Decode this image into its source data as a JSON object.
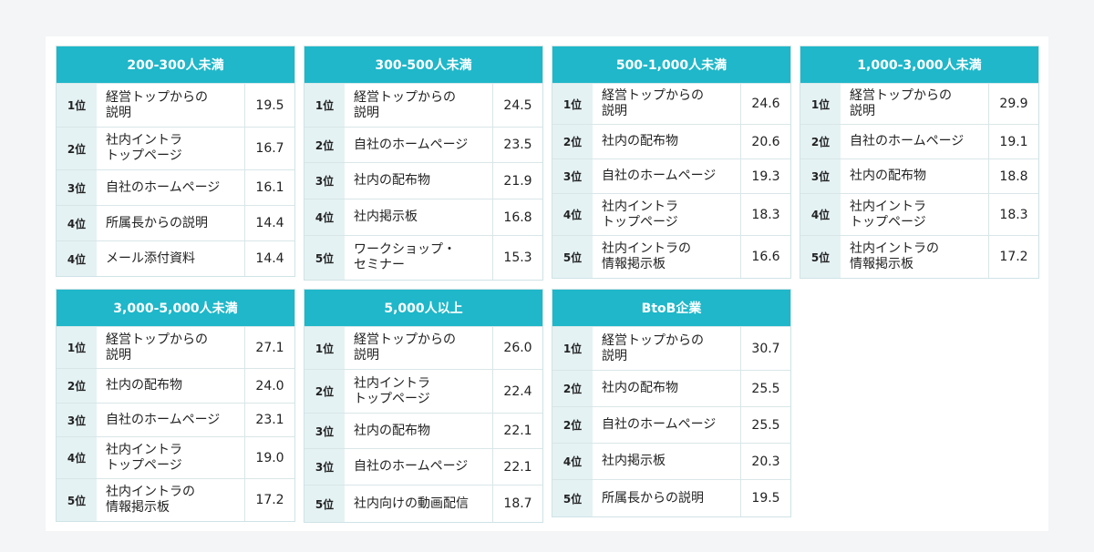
{
  "tables": [
    {
      "title": "200-300人未満",
      "rows": [
        {
          "rank": "1位",
          "label": "経営トップからの\n説明",
          "value": "19.5"
        },
        {
          "rank": "2位",
          "label": "社内イントラ\nトップページ",
          "value": "16.7"
        },
        {
          "rank": "3位",
          "label": "自社のホームページ",
          "value": "16.1"
        },
        {
          "rank": "4位",
          "label": "所属長からの説明",
          "value": "14.4"
        },
        {
          "rank": "4位",
          "label": "メール添付資料",
          "value": "14.4"
        }
      ]
    },
    {
      "title": "300-500人未満",
      "rows": [
        {
          "rank": "1位",
          "label": "経営トップからの\n説明",
          "value": "24.5"
        },
        {
          "rank": "2位",
          "label": "自社のホームページ",
          "value": "23.5"
        },
        {
          "rank": "3位",
          "label": "社内の配布物",
          "value": "21.9"
        },
        {
          "rank": "4位",
          "label": "社内掲示板",
          "value": "16.8"
        },
        {
          "rank": "5位",
          "label": "ワークショップ・\nセミナー",
          "value": "15.3"
        }
      ]
    },
    {
      "title": "500-1,000人未満",
      "rows": [
        {
          "rank": "1位",
          "label": "経営トップからの\n説明",
          "value": "24.6"
        },
        {
          "rank": "2位",
          "label": "社内の配布物",
          "value": "20.6"
        },
        {
          "rank": "3位",
          "label": "自社のホームページ",
          "value": "19.3"
        },
        {
          "rank": "4位",
          "label": "社内イントラ\nトップページ",
          "value": "18.3"
        },
        {
          "rank": "5位",
          "label": "社内イントラの\n情報掲示板",
          "value": "16.6"
        }
      ]
    },
    {
      "title": "1,000-3,000人未満",
      "rows": [
        {
          "rank": "1位",
          "label": "経営トップからの\n説明",
          "value": "29.9"
        },
        {
          "rank": "2位",
          "label": "自社のホームページ",
          "value": "19.1"
        },
        {
          "rank": "3位",
          "label": "社内の配布物",
          "value": "18.8"
        },
        {
          "rank": "4位",
          "label": "社内イントラ\nトップページ",
          "value": "18.3"
        },
        {
          "rank": "5位",
          "label": "社内イントラの\n情報掲示板",
          "value": "17.2"
        }
      ]
    },
    {
      "title": "3,000-5,000人未満",
      "rows": [
        {
          "rank": "1位",
          "label": "経営トップからの\n説明",
          "value": "27.1"
        },
        {
          "rank": "2位",
          "label": "社内の配布物",
          "value": "24.0"
        },
        {
          "rank": "3位",
          "label": "自社のホームページ",
          "value": "23.1"
        },
        {
          "rank": "4位",
          "label": "社内イントラ\nトップページ",
          "value": "19.0"
        },
        {
          "rank": "5位",
          "label": "社内イントラの\n情報掲示板",
          "value": "17.2"
        }
      ]
    },
    {
      "title": "5,000人以上",
      "rows": [
        {
          "rank": "1位",
          "label": "経営トップからの\n説明",
          "value": "26.0"
        },
        {
          "rank": "2位",
          "label": "社内イントラ\nトップページ",
          "value": "22.4"
        },
        {
          "rank": "3位",
          "label": "社内の配布物",
          "value": "22.1"
        },
        {
          "rank": "3位",
          "label": "自社のホームページ",
          "value": "22.1"
        },
        {
          "rank": "5位",
          "label": "社内向けの動画配信",
          "value": "18.7"
        }
      ]
    },
    {
      "title": "BtoB企業",
      "rows": [
        {
          "rank": "1位",
          "label": "経営トップからの\n説明",
          "value": "30.7"
        },
        {
          "rank": "2位",
          "label": "社内の配布物",
          "value": "25.5"
        },
        {
          "rank": "2位",
          "label": "自社のホームページ",
          "value": "25.5"
        },
        {
          "rank": "4位",
          "label": "社内掲示板",
          "value": "20.3"
        },
        {
          "rank": "5位",
          "label": "所属長からの説明",
          "value": "19.5"
        }
      ]
    }
  ]
}
